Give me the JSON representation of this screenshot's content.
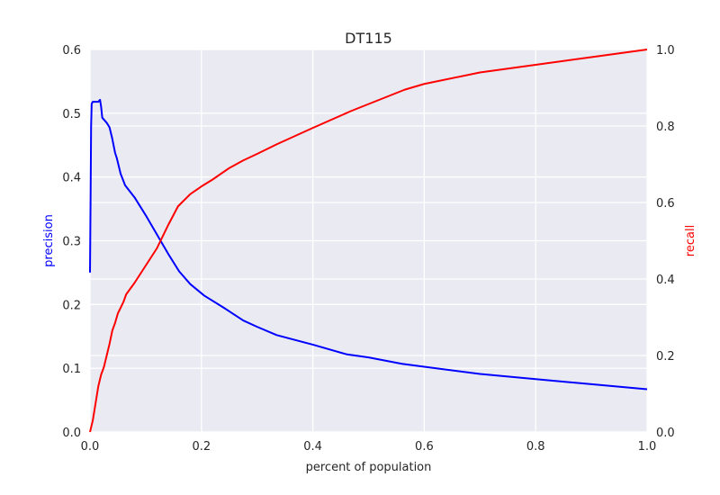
{
  "chart_data": {
    "type": "line",
    "title": "DT115",
    "xlabel": "percent of population",
    "ylabel_left": "precision",
    "ylabel_right": "recall",
    "xlim": [
      0,
      1.0
    ],
    "ylim_left": [
      0,
      0.6
    ],
    "ylim_right": [
      0,
      1.0
    ],
    "x_ticks": [
      "0.0",
      "0.2",
      "0.4",
      "0.6",
      "0.8",
      "1.0"
    ],
    "y_left_ticks": [
      "0.0",
      "0.1",
      "0.2",
      "0.3",
      "0.4",
      "0.5",
      "0.6"
    ],
    "y_right_ticks": [
      "0.0",
      "0.2",
      "0.4",
      "0.6",
      "0.8",
      "1.0"
    ],
    "grid": true,
    "colors": {
      "precision": "#0000ff",
      "recall": "#ff0000",
      "plot_background": "#eaeaf2",
      "grid": "#ffffff"
    },
    "series": [
      {
        "axis": "left",
        "color": "#0000ff",
        "points": [
          [
            0.0,
            0.25
          ],
          [
            0.001,
            0.36
          ],
          [
            0.002,
            0.48
          ],
          [
            0.003,
            0.515
          ],
          [
            0.005,
            0.518
          ],
          [
            0.01,
            0.518
          ],
          [
            0.015,
            0.518
          ],
          [
            0.018,
            0.521
          ],
          [
            0.02,
            0.51
          ],
          [
            0.022,
            0.493
          ],
          [
            0.03,
            0.485
          ],
          [
            0.035,
            0.478
          ],
          [
            0.04,
            0.46
          ],
          [
            0.045,
            0.438
          ],
          [
            0.048,
            0.43
          ],
          [
            0.055,
            0.405
          ],
          [
            0.063,
            0.387
          ],
          [
            0.08,
            0.368
          ],
          [
            0.1,
            0.34
          ],
          [
            0.12,
            0.31
          ],
          [
            0.14,
            0.28
          ],
          [
            0.16,
            0.252
          ],
          [
            0.18,
            0.232
          ],
          [
            0.205,
            0.214
          ],
          [
            0.24,
            0.195
          ],
          [
            0.275,
            0.175
          ],
          [
            0.3,
            0.165
          ],
          [
            0.335,
            0.152
          ],
          [
            0.4,
            0.137
          ],
          [
            0.46,
            0.122
          ],
          [
            0.5,
            0.117
          ],
          [
            0.56,
            0.107
          ],
          [
            0.62,
            0.1
          ],
          [
            0.7,
            0.091
          ],
          [
            0.8,
            0.083
          ],
          [
            0.9,
            0.075
          ],
          [
            1.0,
            0.067
          ]
        ]
      },
      {
        "axis": "right",
        "color": "#ff0000",
        "points": [
          [
            0.0,
            0.0
          ],
          [
            0.005,
            0.03
          ],
          [
            0.01,
            0.075
          ],
          [
            0.015,
            0.12
          ],
          [
            0.02,
            0.15
          ],
          [
            0.025,
            0.17
          ],
          [
            0.03,
            0.2
          ],
          [
            0.035,
            0.23
          ],
          [
            0.04,
            0.265
          ],
          [
            0.045,
            0.285
          ],
          [
            0.05,
            0.31
          ],
          [
            0.055,
            0.325
          ],
          [
            0.06,
            0.34
          ],
          [
            0.065,
            0.36
          ],
          [
            0.08,
            0.39
          ],
          [
            0.1,
            0.435
          ],
          [
            0.12,
            0.48
          ],
          [
            0.14,
            0.54
          ],
          [
            0.158,
            0.59
          ],
          [
            0.18,
            0.622
          ],
          [
            0.2,
            0.642
          ],
          [
            0.22,
            0.66
          ],
          [
            0.25,
            0.69
          ],
          [
            0.275,
            0.71
          ],
          [
            0.3,
            0.727
          ],
          [
            0.335,
            0.752
          ],
          [
            0.4,
            0.795
          ],
          [
            0.47,
            0.84
          ],
          [
            0.565,
            0.895
          ],
          [
            0.6,
            0.91
          ],
          [
            0.7,
            0.94
          ],
          [
            0.8,
            0.96
          ],
          [
            0.9,
            0.98
          ],
          [
            1.0,
            1.0
          ]
        ]
      }
    ]
  }
}
